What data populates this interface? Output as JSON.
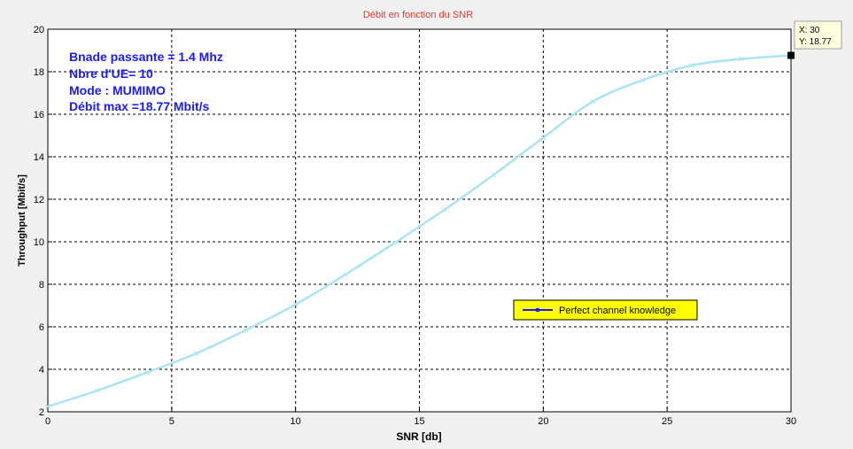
{
  "window": {
    "background": "#f0f0f0"
  },
  "chart_data": {
    "type": "line",
    "title": "Débit en fonction du SNR",
    "title_color": "#e8362a",
    "xlabel": "SNR [db]",
    "ylabel": "Throughput [Mbit/s]",
    "xlim": [
      0,
      30
    ],
    "ylim": [
      2,
      20
    ],
    "xticks": [
      "0",
      "5",
      "10",
      "15",
      "20",
      "25",
      "30"
    ],
    "yticks": [
      "2",
      "4",
      "6",
      "8",
      "10",
      "12",
      "14",
      "16",
      "18",
      "20"
    ],
    "grid": true,
    "grid_style": "dashed",
    "legend_position": "bottom-right",
    "series": [
      {
        "name": "Perfect channel knowledge",
        "color": "#a8e4f4",
        "marker": "x",
        "x": [
          0,
          2,
          4,
          6,
          8,
          10,
          12,
          14,
          16,
          18,
          20,
          22,
          24,
          26,
          28,
          30
        ],
        "y": [
          2.25,
          3.0,
          3.85,
          4.75,
          5.85,
          7.05,
          8.45,
          9.95,
          11.5,
          13.15,
          14.9,
          16.6,
          17.6,
          18.3,
          18.6,
          18.77
        ]
      }
    ],
    "legend": {
      "entries": [
        "Perfect channel knowledge"
      ],
      "background": "#ffff00",
      "line_color": "#1a1aff"
    },
    "annotations": {
      "color": "#1a1aff",
      "lines": [
        "Bnade passante = 1.4 Mhz",
        "Nbre d'UE= 10",
        "Mode : MUMIMO",
        "Débit max =18.77 Mbit/s"
      ]
    },
    "datatip": {
      "x": 30,
      "y": 18.77,
      "x_label": "X: 30",
      "y_label": "Y: 18.77"
    }
  }
}
